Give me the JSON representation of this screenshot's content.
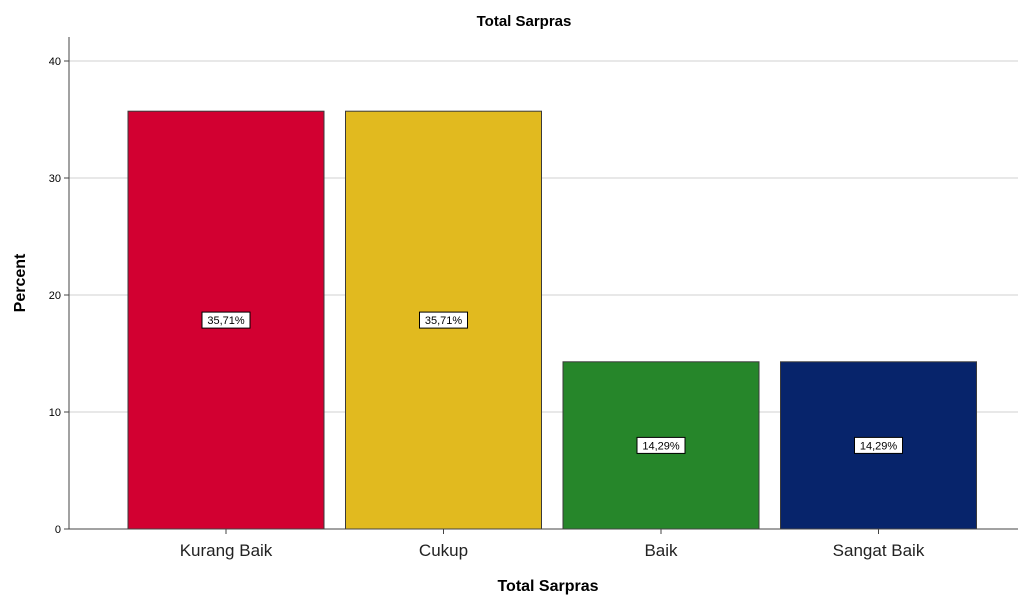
{
  "chart_data": {
    "type": "bar",
    "title": "Total Sarpras",
    "xlabel": "Total Sarpras",
    "ylabel": "Percent",
    "categories": [
      "Kurang Baik",
      "Cukup",
      "Baik",
      "Sangat Baik"
    ],
    "values": [
      35.71,
      35.71,
      14.29,
      14.29
    ],
    "data_labels": [
      "35,71%",
      "35,71%",
      "14,29%",
      "14,29%"
    ],
    "colors": [
      "#d20031",
      "#e1ba1f",
      "#26862a",
      "#07246b"
    ],
    "ylim": [
      0,
      40
    ],
    "yticks": [
      0,
      10,
      20,
      30,
      40
    ],
    "grid": true,
    "legend": "none"
  }
}
